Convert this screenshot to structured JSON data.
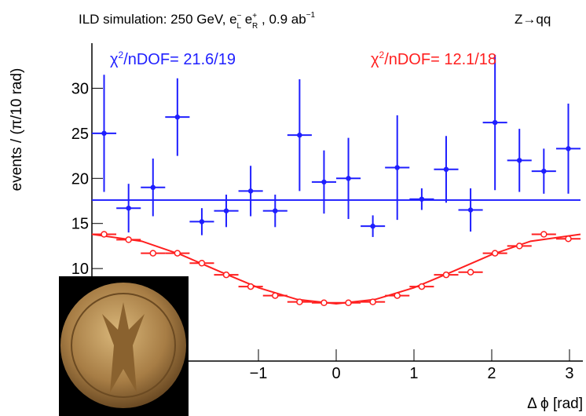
{
  "chart_data": {
    "type": "errorbar",
    "title_parts": [
      "ILD simulation: 250 GeV, e",
      "−",
      "L",
      " e",
      "+",
      "R",
      " , 0.9 ab",
      "−1"
    ],
    "process": "Z→qq",
    "y_label": "events / (π/10 rad)",
    "x_label": "Δ ϕ [rad]",
    "annotations": [
      {
        "parts": [
          "χ",
          "2",
          "/nDOF= 21.6/19"
        ],
        "color": "#1f1fff"
      },
      {
        "parts": [
          "χ",
          "2",
          "/nDOF= 12.1/18"
        ],
        "color": "#ff1f1f"
      }
    ],
    "x": [
      -2.985,
      -2.67,
      -2.356,
      -2.042,
      -1.728,
      -1.414,
      -1.1,
      -0.785,
      -0.471,
      -0.157,
      0.157,
      0.471,
      0.785,
      1.1,
      1.414,
      1.728,
      2.042,
      2.356,
      2.67,
      2.985
    ],
    "xerr": 0.157,
    "series": [
      {
        "color": "#1f1fff",
        "marker": "filled",
        "values": [
          25,
          16.7,
          19,
          26.8,
          15.2,
          16.4,
          18.6,
          16.4,
          24.8,
          19.6,
          20,
          14.7,
          21.2,
          17.7,
          21,
          16.5,
          26.2,
          22,
          20.8,
          23.3
        ],
        "errors": [
          6.5,
          2.7,
          3.2,
          4.3,
          1.5,
          1.8,
          2.8,
          1.8,
          6.2,
          3.5,
          4.5,
          1.2,
          5.8,
          1.2,
          3.7,
          2.4,
          7.5,
          3.5,
          2.5,
          5
        ]
      },
      {
        "color": "#ff1f1f",
        "marker": "open",
        "values": [
          13.8,
          13.2,
          11.7,
          11.7,
          10.6,
          9.3,
          8.0,
          7.0,
          6.3,
          6.2,
          6.2,
          6.3,
          7.0,
          8.0,
          9.3,
          9.6,
          11.7,
          12.5,
          13.8,
          13.3
        ]
      }
    ],
    "fits": [
      {
        "color": "#1f1fff",
        "x": [
          -3.1416,
          3.1416
        ],
        "values": [
          17.6,
          17.6
        ]
      },
      {
        "color": "#ff1f1f",
        "x": [
          -3.1416,
          -2.5,
          -2,
          -1.5,
          -1,
          -0.5,
          0,
          0.5,
          1,
          1.5,
          2,
          2.5,
          3.1416
        ],
        "values": [
          13.8,
          13.03,
          11.55,
          9.68,
          7.87,
          6.57,
          6.1,
          6.57,
          7.87,
          9.68,
          11.55,
          13.03,
          13.8
        ]
      }
    ],
    "xlim": [
      -3.1416,
      3.1416
    ],
    "ylim": [
      0,
      35
    ],
    "xticks": [
      {
        "value": -1,
        "label": "−1"
      },
      0,
      1,
      2,
      3
    ],
    "yticks": [
      10,
      15,
      20,
      25,
      30
    ]
  }
}
